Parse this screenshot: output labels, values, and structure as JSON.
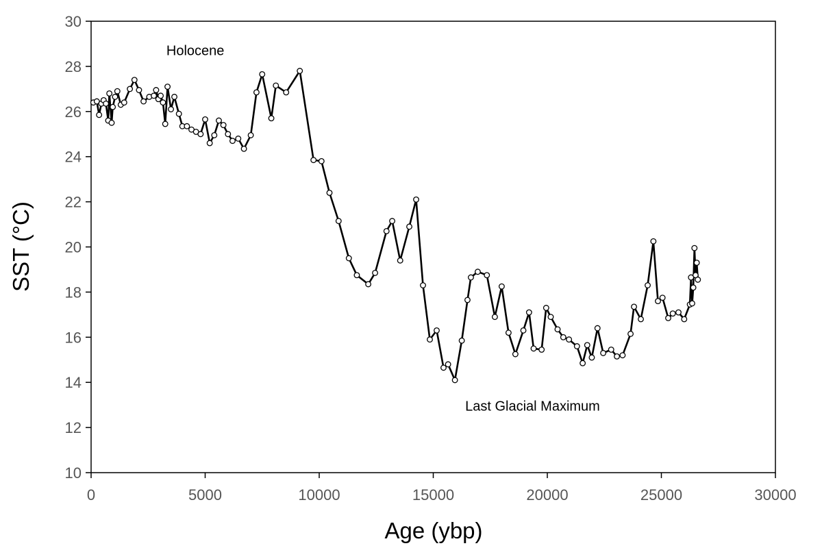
{
  "chart_data": {
    "type": "line",
    "title": "",
    "xlabel": "Age (ybp)",
    "ylabel": "SST (°C)",
    "xlim": [
      0,
      30000
    ],
    "ylim": [
      10,
      30
    ],
    "xticks": [
      0,
      5000,
      10000,
      15000,
      20000,
      25000,
      30000
    ],
    "yticks": [
      10,
      12,
      14,
      16,
      18,
      20,
      22,
      24,
      26,
      28,
      30
    ],
    "xtick_labels": [
      "0",
      "5000",
      "10000",
      "15000",
      "20000",
      "25000",
      "30000"
    ],
    "ytick_labels": [
      "10",
      "12",
      "14",
      "16",
      "18",
      "20",
      "22",
      "24",
      "26",
      "28",
      "30"
    ],
    "grid": false,
    "line_color": "#000000",
    "marker": "open-circle",
    "annotations": [
      {
        "text": "Holocene",
        "x": 3300,
        "y": 28.5
      },
      {
        "text": "Last Glacial Maximum",
        "x": 16400,
        "y": 12.75
      }
    ],
    "series": [
      {
        "name": "SST",
        "x": [
          100,
          250,
          350,
          450,
          550,
          650,
          750,
          800,
          900,
          950,
          1050,
          1150,
          1300,
          1450,
          1700,
          1900,
          2100,
          2300,
          2550,
          2750,
          2850,
          2950,
          3050,
          3150,
          3250,
          3350,
          3500,
          3650,
          3850,
          4000,
          4200,
          4400,
          4600,
          4800,
          5000,
          5200,
          5400,
          5600,
          5800,
          6000,
          6200,
          6450,
          6700,
          7000,
          7250,
          7500,
          7900,
          8100,
          8550,
          9150,
          9750,
          10100,
          10450,
          10850,
          11300,
          11650,
          12150,
          12450,
          12950,
          13200,
          13550,
          13950,
          14250,
          14550,
          14850,
          15150,
          15450,
          15650,
          15950,
          16250,
          16500,
          16650,
          16950,
          17350,
          17700,
          18000,
          18300,
          18600,
          18950,
          19200,
          19400,
          19750,
          19950,
          20150,
          20450,
          20700,
          20950,
          21300,
          21550,
          21750,
          21950,
          22200,
          22450,
          22800,
          23050,
          23300,
          23650,
          23800,
          24100,
          24400,
          24650,
          24850,
          25050,
          25300,
          25500,
          25750,
          26000,
          26250,
          26300,
          26350,
          26400,
          26450,
          26500,
          26550,
          26600
        ],
        "values": [
          26.4,
          26.45,
          25.85,
          26.35,
          26.5,
          26.35,
          25.6,
          26.8,
          25.5,
          26.2,
          26.65,
          26.9,
          26.3,
          26.4,
          27.0,
          27.4,
          26.95,
          26.45,
          26.65,
          26.7,
          26.95,
          26.55,
          26.7,
          26.4,
          25.45,
          27.1,
          26.1,
          26.65,
          25.9,
          25.35,
          25.35,
          25.2,
          25.1,
          25.0,
          25.65,
          24.6,
          24.95,
          25.6,
          25.4,
          25.0,
          24.7,
          24.8,
          24.35,
          24.95,
          26.85,
          27.65,
          25.7,
          27.15,
          26.85,
          27.8,
          23.85,
          23.8,
          22.4,
          21.15,
          19.5,
          18.75,
          18.35,
          18.85,
          20.7,
          21.15,
          19.4,
          20.9,
          22.1,
          18.3,
          15.9,
          16.3,
          14.65,
          14.8,
          14.1,
          15.85,
          17.65,
          18.65,
          18.9,
          18.75,
          16.9,
          18.25,
          16.2,
          15.25,
          16.3,
          17.1,
          15.5,
          15.45,
          17.3,
          16.9,
          16.35,
          16.0,
          15.9,
          15.6,
          14.85,
          15.65,
          15.1,
          16.4,
          15.3,
          15.45,
          15.15,
          15.2,
          16.15,
          17.35,
          16.8,
          18.3,
          20.25,
          17.6,
          17.75,
          16.85,
          17.05,
          17.1,
          16.8,
          17.45,
          18.65,
          17.5,
          18.2,
          19.95,
          18.75,
          19.3,
          18.55
        ]
      }
    ]
  }
}
